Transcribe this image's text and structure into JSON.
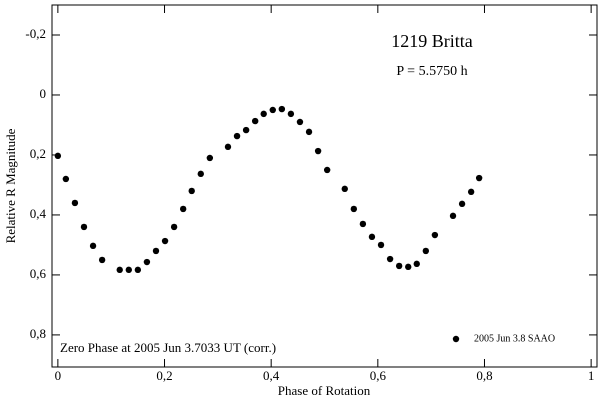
{
  "chart_data": {
    "type": "scatter",
    "title": "1219 Britta",
    "subtitle": "P = 5.5750 h",
    "annotation": "Zero Phase at 2005 Jun 3.7033 UT (corr.)",
    "x_label": "Phase of Rotation",
    "y_label": "Relative R Magnitude",
    "xlim": [
      -0.011,
      1.011
    ],
    "ylim": [
      0.907,
      -0.3
    ],
    "xticks": [
      0,
      {
        "value": 0.2,
        "label": "0,2"
      },
      {
        "value": 0.4,
        "label": "0,4"
      },
      {
        "value": 0.6,
        "label": "0,6"
      },
      {
        "value": 0.8,
        "label": "0,8"
      },
      1
    ],
    "yticks": [
      {
        "value": -0.2,
        "label": "-0,2"
      },
      0,
      {
        "value": 0.2,
        "label": "0,2"
      },
      {
        "value": 0.4,
        "label": "0,4"
      },
      {
        "value": 0.6,
        "label": "0,6"
      },
      {
        "value": 0.8,
        "label": "0,8"
      }
    ],
    "legend": "lower right",
    "series": [
      {
        "name": "2005 Jun 3.8 SAAO",
        "color": "#000000",
        "x": [
          0,
          0.015,
          0.032,
          0.049,
          0.066,
          0.083,
          0.116,
          0.133,
          0.15,
          0.167,
          0.184,
          0.201,
          0.218,
          0.235,
          0.251,
          0.268,
          0.285,
          0.319,
          0.336,
          0.353,
          0.37,
          0.386,
          0.403,
          0.42,
          0.437,
          0.454,
          0.471,
          0.488,
          0.505,
          0.538,
          0.555,
          0.572,
          0.589,
          0.606,
          0.623,
          0.64,
          0.657,
          0.673,
          0.69,
          0.707,
          0.741,
          0.758,
          0.775,
          0.79
        ],
        "values": [
          0.203,
          0.28,
          0.36,
          0.44,
          0.503,
          0.55,
          0.583,
          0.583,
          0.583,
          0.557,
          0.52,
          0.487,
          0.44,
          0.38,
          0.32,
          0.263,
          0.21,
          0.173,
          0.137,
          0.117,
          0.087,
          0.063,
          0.05,
          0.047,
          0.063,
          0.09,
          0.123,
          0.187,
          0.25,
          0.313,
          0.38,
          0.43,
          0.473,
          0.5,
          0.547,
          0.57,
          0.573,
          0.563,
          0.52,
          0.467,
          0.403,
          0.363,
          0.323,
          0.277
        ]
      }
    ]
  }
}
